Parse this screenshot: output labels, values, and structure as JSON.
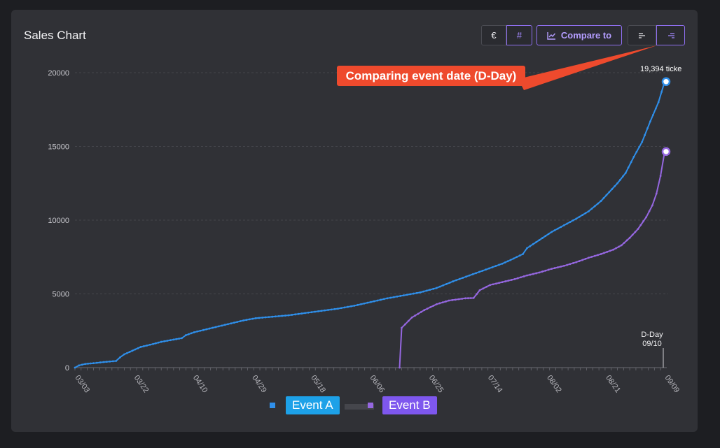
{
  "header": {
    "title": "Sales Chart"
  },
  "toolbar": {
    "currency_label": "€",
    "count_label": "#",
    "compare_label": "Compare to"
  },
  "annotation": {
    "text": "Comparing event date (D-Day)"
  },
  "colors": {
    "event_a": "#2f8fea",
    "event_b": "#9567e0",
    "annotation": "#ee4a2d",
    "legend_a_bg": "#1da1e8",
    "legend_b_bg": "#7e57ee"
  },
  "legend": {
    "a": "Event A",
    "b": "Event B"
  },
  "chart_data": {
    "type": "line",
    "x_ticks": [
      "03/03",
      "03/22",
      "04/10",
      "04/29",
      "05/18",
      "06/06",
      "06/25",
      "07/14",
      "08/02",
      "08/21",
      "09/09"
    ],
    "ylim": [
      0,
      20000
    ],
    "y_ticks": [
      "0",
      "5000",
      "10000",
      "15000",
      "20000"
    ],
    "grid": true,
    "x_note": "D-Day",
    "x_note_date": "09/10",
    "end_label": "19,394 ticke",
    "series": [
      {
        "name": "Event A",
        "color": "#2f8fea",
        "points": [
          [
            0,
            0
          ],
          [
            2,
            150
          ],
          [
            5,
            250
          ],
          [
            9,
            300
          ],
          [
            14,
            380
          ],
          [
            20,
            450
          ],
          [
            22,
            700
          ],
          [
            24,
            900
          ],
          [
            28,
            1150
          ],
          [
            32,
            1400
          ],
          [
            38,
            1600
          ],
          [
            42,
            1750
          ],
          [
            48,
            1900
          ],
          [
            52,
            2000
          ],
          [
            54,
            2200
          ],
          [
            58,
            2400
          ],
          [
            64,
            2600
          ],
          [
            70,
            2800
          ],
          [
            76,
            3000
          ],
          [
            82,
            3200
          ],
          [
            88,
            3350
          ],
          [
            96,
            3450
          ],
          [
            104,
            3550
          ],
          [
            112,
            3700
          ],
          [
            120,
            3850
          ],
          [
            128,
            4000
          ],
          [
            136,
            4200
          ],
          [
            144,
            4450
          ],
          [
            152,
            4700
          ],
          [
            160,
            4900
          ],
          [
            168,
            5100
          ],
          [
            176,
            5400
          ],
          [
            184,
            5850
          ],
          [
            192,
            6250
          ],
          [
            200,
            6650
          ],
          [
            208,
            7050
          ],
          [
            212,
            7300
          ],
          [
            218,
            7700
          ],
          [
            220,
            8100
          ],
          [
            226,
            8650
          ],
          [
            232,
            9200
          ],
          [
            238,
            9650
          ],
          [
            244,
            10100
          ],
          [
            250,
            10600
          ],
          [
            256,
            11300
          ],
          [
            260,
            11900
          ],
          [
            264,
            12500
          ],
          [
            268,
            13200
          ],
          [
            272,
            14300
          ],
          [
            276,
            15300
          ],
          [
            280,
            16700
          ],
          [
            284,
            18000
          ],
          [
            287,
            19394
          ]
        ]
      },
      {
        "name": "Event B",
        "color": "#9567e0",
        "points": [
          [
            158,
            0
          ],
          [
            159,
            2700
          ],
          [
            164,
            3400
          ],
          [
            170,
            3900
          ],
          [
            176,
            4300
          ],
          [
            182,
            4550
          ],
          [
            190,
            4700
          ],
          [
            194,
            4720
          ],
          [
            197,
            5250
          ],
          [
            202,
            5600
          ],
          [
            208,
            5800
          ],
          [
            214,
            6000
          ],
          [
            220,
            6250
          ],
          [
            226,
            6450
          ],
          [
            232,
            6700
          ],
          [
            238,
            6900
          ],
          [
            244,
            7150
          ],
          [
            250,
            7450
          ],
          [
            256,
            7700
          ],
          [
            262,
            8000
          ],
          [
            266,
            8300
          ],
          [
            270,
            8800
          ],
          [
            274,
            9400
          ],
          [
            278,
            10200
          ],
          [
            281,
            11000
          ],
          [
            283,
            11800
          ],
          [
            285,
            13000
          ],
          [
            287,
            14650
          ]
        ]
      }
    ]
  }
}
